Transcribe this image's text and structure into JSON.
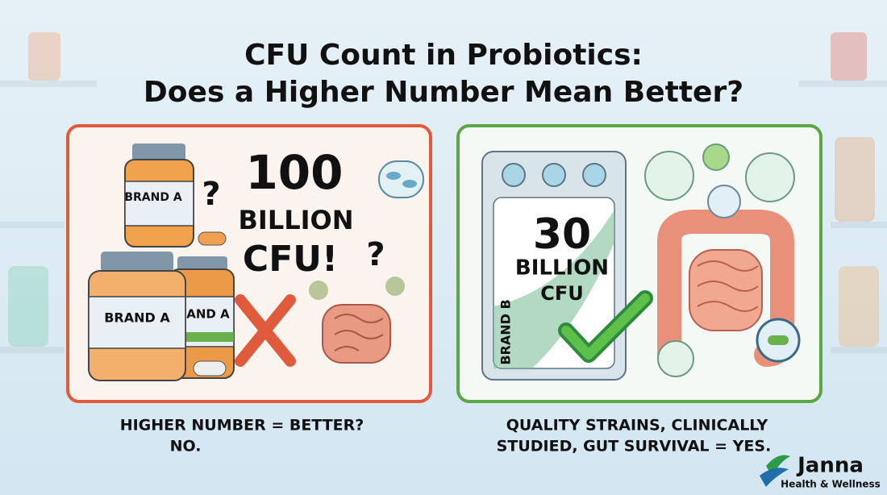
{
  "header": {
    "title_lines": [
      "CFU Count in Probiotics:",
      "Does a Higher Number Mean Better?"
    ]
  },
  "left_panel": {
    "jar_labels": [
      "BRAND A",
      "BRAND A",
      "AND A"
    ],
    "question_marks": [
      "?",
      "?"
    ],
    "claim_lines": [
      "100",
      "BILLION",
      "CFU!"
    ],
    "caption_lines": [
      "HIGHER NUMBER = BETTER?",
      "NO."
    ]
  },
  "right_panel": {
    "claim_lines": [
      "30",
      "BILLION",
      "CFU"
    ],
    "pack_label": "BRAND B",
    "caption_lines": [
      "QUALITY STRAINS, CLINICALLY",
      "STUDIED, GUT SURVIVAL = YES."
    ]
  },
  "logo": {
    "name": "Janna",
    "tagline": "Health & Wellness"
  }
}
